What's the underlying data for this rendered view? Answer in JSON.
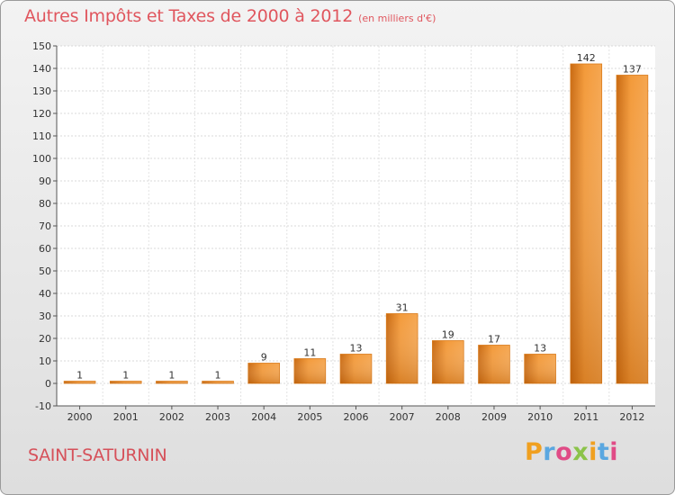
{
  "chart_data": {
    "type": "bar",
    "title": "Autres Impôts et Taxes de 2000 à 2012",
    "unit": "(en milliers d'€)",
    "categories": [
      "2000",
      "2001",
      "2002",
      "2003",
      "2004",
      "2005",
      "2006",
      "2007",
      "2008",
      "2009",
      "2010",
      "2011",
      "2012"
    ],
    "values": [
      1,
      1,
      1,
      1,
      9,
      11,
      13,
      31,
      19,
      17,
      13,
      142,
      137
    ],
    "y_ticks": [
      -10,
      0,
      10,
      20,
      30,
      40,
      50,
      60,
      70,
      80,
      90,
      100,
      110,
      120,
      130,
      140,
      150
    ],
    "ylim": [
      -10,
      150
    ],
    "grid": true,
    "bar_color": "#f0922e",
    "title_color": "#e0565e"
  },
  "footer": {
    "commune": "SAINT-SATURNIN",
    "brand": [
      "P",
      "r",
      "o",
      "x",
      "i",
      "t",
      "i"
    ],
    "brand_colors": [
      "#f0a020",
      "#5aa7e0",
      "#e04b86",
      "#8bc34a",
      "#f0a020",
      "#5aa7e0",
      "#e04b86"
    ]
  }
}
